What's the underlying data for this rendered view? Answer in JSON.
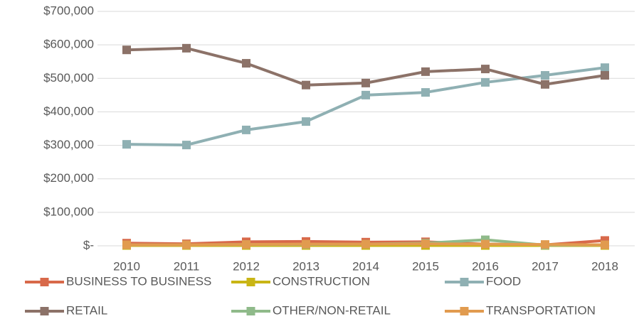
{
  "chart_data": {
    "type": "line",
    "categories": [
      "2010",
      "2011",
      "2012",
      "2013",
      "2014",
      "2015",
      "2016",
      "2017",
      "2018"
    ],
    "series": [
      {
        "name": "BUSINESS TO BUSINESS",
        "color": "#d8694a",
        "values": [
          8000,
          6000,
          12000,
          13000,
          11000,
          12000,
          5000,
          3000,
          16000
        ]
      },
      {
        "name": "CONSTRUCTION",
        "color": "#c9b515",
        "values": [
          1000,
          1000,
          1000,
          1000,
          1000,
          1000,
          1000,
          1000,
          1000
        ]
      },
      {
        "name": "FOOD",
        "color": "#8fb0b3",
        "values": [
          303000,
          301000,
          346000,
          371000,
          450000,
          458000,
          488000,
          509000,
          532000
        ]
      },
      {
        "name": "RETAIL",
        "color": "#8c7268",
        "values": [
          585000,
          590000,
          545000,
          480000,
          486000,
          520000,
          528000,
          482000,
          509000
        ]
      },
      {
        "name": "OTHER/NON-RETAIL",
        "color": "#8fba8a",
        "values": [
          3000,
          3000,
          4000,
          4000,
          5000,
          8000,
          18000,
          2000,
          3000
        ]
      },
      {
        "name": "TRANSPORTATION",
        "color": "#e19b4f",
        "values": [
          3000,
          3000,
          4000,
          5000,
          5000,
          6000,
          5000,
          4000,
          3000
        ]
      }
    ],
    "ylim": [
      0,
      700000
    ],
    "yticks": [
      {
        "value": 0,
        "label": "$-"
      },
      {
        "value": 100000,
        "label": "$100,000"
      },
      {
        "value": 200000,
        "label": "$200,000"
      },
      {
        "value": 300000,
        "label": "$300,000"
      },
      {
        "value": 400000,
        "label": "$400,000"
      },
      {
        "value": 500000,
        "label": "$500,000"
      },
      {
        "value": 600000,
        "label": "$600,000"
      },
      {
        "value": 700000,
        "label": "$700,000"
      }
    ],
    "grid": true,
    "legend": "bottom"
  }
}
